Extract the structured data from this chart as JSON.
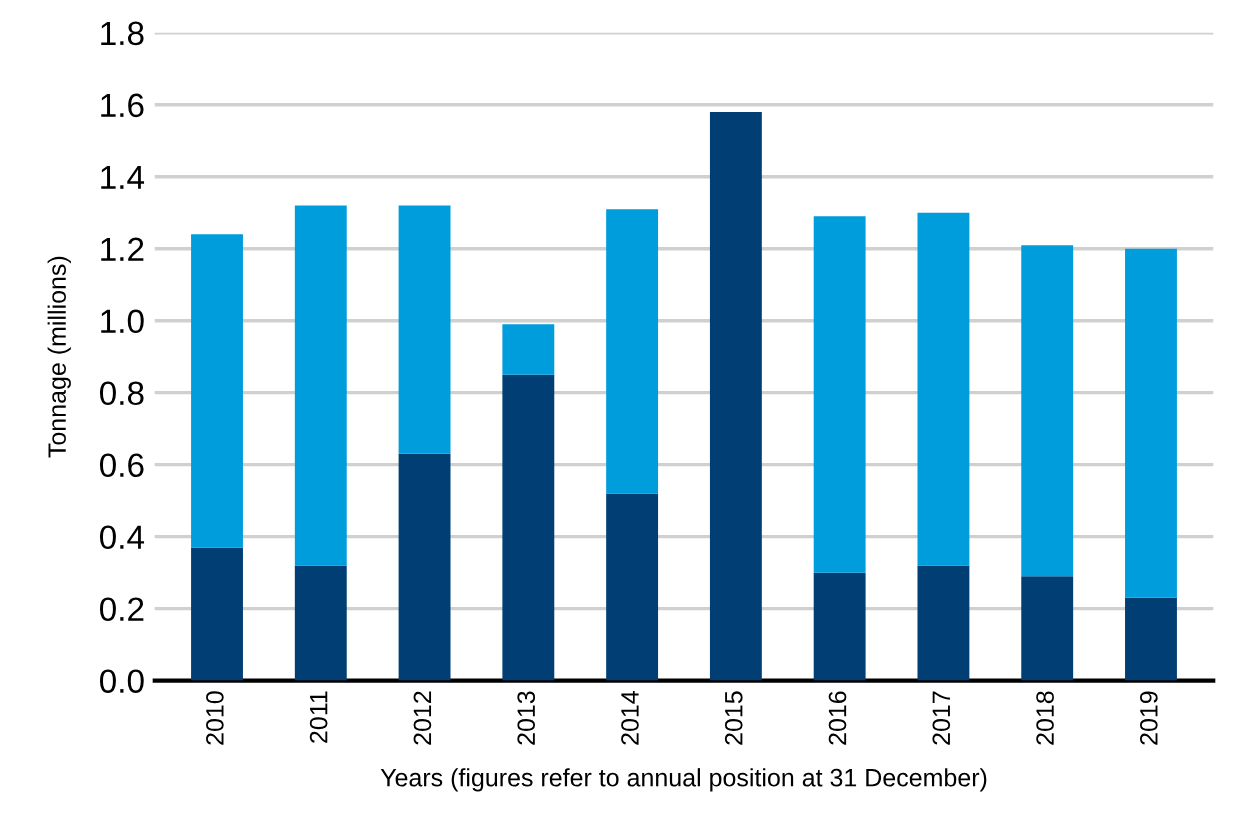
{
  "chart_data": {
    "type": "bar",
    "stacked": true,
    "xlabel": "Years (figures refer to annual position at 31 December)",
    "ylabel": "Tonnage (millions)",
    "categories": [
      "2010",
      "2011",
      "2012",
      "2013",
      "2014",
      "2015",
      "2016",
      "2017",
      "2018",
      "2019"
    ],
    "series": [
      {
        "color": "#003e74",
        "values": [
          0.37,
          0.32,
          0.63,
          0.85,
          0.52,
          1.58,
          0.3,
          0.32,
          0.29,
          0.23
        ]
      },
      {
        "color": "#009ddc",
        "values": [
          0.87,
          1.0,
          0.69,
          0.14,
          0.79,
          0,
          0.99,
          0.98,
          0.92,
          0.97
        ]
      }
    ],
    "ylim": [
      0,
      1.8
    ],
    "yticks": [
      {
        "value": 0,
        "label": "0.0"
      },
      0.2,
      0.4,
      0.6,
      0.8,
      {
        "value": 1,
        "label": "1.0"
      },
      1.2,
      1.4,
      1.6,
      1.8
    ],
    "grid": "y"
  }
}
